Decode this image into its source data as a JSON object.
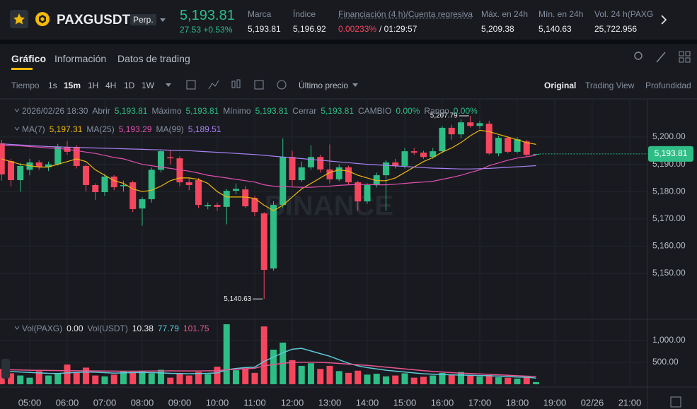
{
  "header": {
    "symbol": "PAXGUSDT",
    "contract": "Perp.",
    "price": "5,193.81",
    "change": "27.53 +0.53%",
    "stats": [
      {
        "label": "Marca",
        "value": "5,193.81"
      },
      {
        "label": "Índice",
        "value": "5,196.92"
      },
      {
        "label": "Financiación (4 h)/Cuenta regresiva",
        "value": "0.00233%",
        "countdown": "/ 01:29:57"
      },
      {
        "label": "Máx. en 24h",
        "value": "5,209.38"
      },
      {
        "label": "Mín. en 24h",
        "value": "5,140.63"
      },
      {
        "label": "Vol. 24 h(PAXG",
        "value": "25,722.956"
      }
    ]
  },
  "tabs": [
    "Gráfico",
    "Información",
    "Datos de trading"
  ],
  "toolbar": {
    "time_label": "Tiempo",
    "intervals": [
      "1s",
      "15m",
      "1H",
      "4H",
      "1D",
      "1W"
    ],
    "price_type": "Último precio",
    "views": [
      "Original",
      "Trading View",
      "Profundidad"
    ]
  },
  "legend": {
    "ohlc": [
      {
        "text": "2026/02/26 18:30",
        "kind": "label"
      },
      {
        "text": "Abrir",
        "kind": "label"
      },
      {
        "text": "5,193.81",
        "kind": "value"
      },
      {
        "text": "Máximo",
        "kind": "label"
      },
      {
        "text": "5,193.81",
        "kind": "value"
      },
      {
        "text": "Mínimo",
        "kind": "label"
      },
      {
        "text": "5,193.81",
        "kind": "value"
      },
      {
        "text": "Cerrar",
        "kind": "label"
      },
      {
        "text": "5,193.81",
        "kind": "value"
      },
      {
        "text": "CAMBIO",
        "kind": "label"
      },
      {
        "text": "0.00%",
        "kind": "value"
      },
      {
        "text": "Rango",
        "kind": "label"
      },
      {
        "text": "0.00%",
        "kind": "value"
      }
    ],
    "ma_values": [
      "5,197.31",
      "5,193.29",
      "5,189.51"
    ],
    "vol": {
      "label1": "Vol(PAXG)",
      "value1": "0.00",
      "label2": "Vol(USDT)",
      "value2": "10.38",
      "ma_values": [
        "77.79",
        "101.75"
      ]
    }
  },
  "chart_data": [
    {
      "type": "candlestick",
      "watermark": "BINANCE",
      "grid": true,
      "colors": {
        "up": "#2ebd85",
        "down": "#f6465d"
      },
      "x": [
        4.25,
        4.5,
        4.75,
        5,
        5.25,
        5.5,
        5.75,
        6,
        6.25,
        6.5,
        6.75,
        7,
        7.25,
        7.5,
        7.75,
        8,
        8.25,
        8.5,
        8.75,
        9,
        9.25,
        9.5,
        9.75,
        10,
        10.25,
        10.5,
        10.75,
        11,
        11.25,
        11.5,
        11.75,
        12,
        12.25,
        12.5,
        12.75,
        13,
        13.25,
        13.5,
        13.75,
        14,
        14.25,
        14.5,
        14.75,
        15,
        15.25,
        15.5,
        15.75,
        16,
        16.25,
        16.5,
        16.75,
        17,
        17.25,
        17.5,
        17.75,
        18,
        18.25,
        18.5
      ],
      "open": [
        5197.7,
        5191.2,
        5184.2,
        5188,
        5190.7,
        5189,
        5190,
        5196.4,
        5196.4,
        5189.4,
        5182.4,
        5179.8,
        5185.5,
        5182,
        5183.4,
        5173.8,
        5177.2,
        5188,
        5192.6,
        5192.2,
        5183.4,
        5184.2,
        5174.6,
        5175.1,
        5174.4,
        5180.3,
        5180.8,
        5177.7,
        5172,
        5151.8,
        5175.1,
        5192.7,
        5184.2,
        5188.9,
        5192.7,
        5188.1,
        5184.5,
        5188.9,
        5183.4,
        5176.4,
        5182.4,
        5186,
        5190.7,
        5189.4,
        5194.8,
        5194.3,
        5192.7,
        5194.8,
        5203.4,
        5201,
        5205.4,
        5204.1,
        5204.9,
        5194,
        5199.7,
        5194.6,
        5198.4,
        5193.81
      ],
      "high": [
        5199,
        5192,
        5190.5,
        5192,
        5191.5,
        5191,
        5197.5,
        5198.5,
        5197,
        5190,
        5183,
        5186.5,
        5186,
        5184,
        5184,
        5178,
        5188.8,
        5195.5,
        5195,
        5193,
        5185,
        5185,
        5176,
        5176,
        5181,
        5183,
        5182,
        5178.5,
        5172.5,
        5176.5,
        5199.5,
        5195,
        5191,
        5197,
        5193.5,
        5197.3,
        5190,
        5189.5,
        5184,
        5183,
        5187,
        5191.5,
        5192,
        5196,
        5196,
        5195,
        5196,
        5204,
        5204.5,
        5206.5,
        5207.79,
        5206,
        5206,
        5200.5,
        5200,
        5200,
        5199,
        5193.81
      ],
      "low": [
        5184,
        5182,
        5180,
        5186,
        5188,
        5187.5,
        5189.5,
        5193.5,
        5188.5,
        5180,
        5177,
        5178.5,
        5180.5,
        5180,
        5172.5,
        5167.5,
        5176,
        5187,
        5190,
        5182,
        5180.5,
        5174,
        5173.5,
        5173,
        5168,
        5179,
        5174,
        5171,
        5140.63,
        5151,
        5174,
        5182,
        5183.5,
        5188,
        5187,
        5183,
        5183.8,
        5182.5,
        5173,
        5175.5,
        5181.5,
        5173,
        5188.5,
        5188.5,
        5193.5,
        5192,
        5192,
        5194,
        5199,
        5199.5,
        5203.5,
        5203,
        5193.5,
        5193,
        5194,
        5194,
        5193,
        5193.81
      ],
      "close": [
        5186.3,
        5184.2,
        5189.4,
        5190.7,
        5189,
        5190,
        5196.4,
        5194.6,
        5189.4,
        5182.4,
        5179.8,
        5185.5,
        5181.6,
        5182.4,
        5173.6,
        5177.2,
        5188,
        5194.8,
        5192.2,
        5183.4,
        5182.4,
        5175.1,
        5175.1,
        5174.4,
        5180.3,
        5181,
        5174.6,
        5172.5,
        5151.3,
        5175.1,
        5192.7,
        5184.2,
        5188.9,
        5192.7,
        5188.1,
        5184.5,
        5188.9,
        5183.4,
        5176.4,
        5182.4,
        5186,
        5190.7,
        5189.4,
        5194.8,
        5194.3,
        5192.7,
        5194.8,
        5203.4,
        5201,
        5205.4,
        5204.1,
        5205.1,
        5194,
        5199.7,
        5194.6,
        5199.2,
        5193.5,
        5193.81
      ],
      "lines": [
        {
          "name": "MA(7)",
          "color": "#f0b90b",
          "values": [
            5192,
            5191,
            5190,
            5189.5,
            5189,
            5189,
            5190,
            5191,
            5192,
            5191,
            5188,
            5186,
            5184,
            5183,
            5181,
            5180,
            5180.5,
            5182,
            5184,
            5185,
            5185,
            5184.5,
            5183,
            5180,
            5178,
            5178,
            5178,
            5177.5,
            5175,
            5173,
            5175,
            5178,
            5181,
            5183,
            5185,
            5187,
            5188,
            5187.5,
            5186,
            5185,
            5184,
            5184,
            5185,
            5187,
            5189,
            5191,
            5192.5,
            5194.5,
            5196,
            5198,
            5200.5,
            5202.5,
            5202,
            5201,
            5200,
            5199,
            5198,
            5197.31
          ]
        },
        {
          "name": "MA(25)",
          "color": "#e24fb0",
          "values": [
            5197,
            5197,
            5196.8,
            5196.5,
            5196.3,
            5196,
            5195.8,
            5195.5,
            5195,
            5194.5,
            5194,
            5193.3,
            5192.5,
            5192,
            5191,
            5190,
            5189.5,
            5189,
            5188.5,
            5188,
            5187.5,
            5186.8,
            5186,
            5185.5,
            5185,
            5184.5,
            5184,
            5183.5,
            5182.5,
            5182,
            5181.8,
            5181.7,
            5181.6,
            5181.6,
            5181.8,
            5182,
            5182.3,
            5182.5,
            5182.6,
            5182.6,
            5182.5,
            5182.5,
            5182.7,
            5183,
            5183.3,
            5183.5,
            5183.8,
            5184.5,
            5185.2,
            5186,
            5187,
            5188,
            5189.5,
            5190.5,
            5191.5,
            5192.3,
            5192.8,
            5193.29
          ]
        },
        {
          "name": "MA(99)",
          "color": "#a880f0",
          "values": [
            5197.5,
            5197.3,
            5197.1,
            5196.9,
            5196.7,
            5196.5,
            5196.4,
            5196.3,
            5196.2,
            5196.1,
            5196,
            5195.9,
            5195.8,
            5195.7,
            5195.6,
            5195.5,
            5195.4,
            5195.3,
            5195.2,
            5195.1,
            5195,
            5194.8,
            5194.6,
            5194.4,
            5194.2,
            5194,
            5193.8,
            5193.6,
            5193.3,
            5193,
            5192.7,
            5192.4,
            5192.1,
            5191.8,
            5191.5,
            5191.2,
            5190.9,
            5190.6,
            5190.3,
            5190,
            5189.8,
            5189.6,
            5189.4,
            5189.2,
            5189,
            5188.8,
            5188.6,
            5188.5,
            5188.4,
            5188.3,
            5188.3,
            5188.4,
            5188.5,
            5188.7,
            5188.9,
            5189.1,
            5189.3,
            5189.51
          ]
        }
      ],
      "xlim": [
        4.208,
        21.472
      ],
      "ylim": [
        5134.2,
        5214.0
      ],
      "yticks": [
        {
          "value": 5200,
          "label": "5,200.00"
        },
        {
          "value": 5190,
          "label": "5,190.00"
        },
        {
          "value": 5180,
          "label": "5,180.00"
        },
        {
          "value": 5170,
          "label": "5,170.00"
        },
        {
          "value": 5160,
          "label": "5,160.00"
        },
        {
          "value": 5150,
          "label": "5,150.00"
        }
      ],
      "annotations": [
        {
          "x": 16.75,
          "value": 5207.79,
          "label": "5,207.79"
        },
        {
          "x": 11.25,
          "value": 5140.63,
          "label": "5,140.63"
        }
      ],
      "last_price": {
        "value": 5193.81,
        "label": "5,193.81"
      }
    },
    {
      "type": "bar",
      "values": [
        350,
        250,
        200,
        150,
        300,
        200,
        250,
        450,
        280,
        380,
        200,
        180,
        220,
        300,
        280,
        300,
        250,
        330,
        150,
        250,
        200,
        280,
        230,
        400,
        1370,
        320,
        350,
        260,
        1320,
        790,
        950,
        550,
        420,
        480,
        350,
        420,
        300,
        260,
        310,
        220,
        240,
        180,
        200,
        250,
        150,
        170,
        200,
        260,
        220,
        280,
        210,
        180,
        210,
        160,
        150,
        130,
        170,
        50
      ],
      "lines": [
        {
          "color": "#5ec8d8",
          "values": [
            300,
            290,
            280,
            270,
            260,
            250,
            245,
            260,
            270,
            280,
            275,
            265,
            255,
            260,
            265,
            270,
            265,
            260,
            250,
            245,
            240,
            245,
            250,
            260,
            330,
            360,
            380,
            390,
            520,
            620,
            720,
            800,
            820,
            760,
            700,
            640,
            560,
            480,
            420,
            380,
            350,
            320,
            300,
            280,
            260,
            240,
            230,
            220,
            215,
            210,
            205,
            200,
            195,
            185,
            175,
            165,
            160,
            140
          ]
        },
        {
          "color": "#e8568e",
          "values": [
            330,
            330,
            325,
            320,
            318,
            315,
            312,
            310,
            308,
            306,
            304,
            302,
            300,
            298,
            298,
            300,
            302,
            305,
            306,
            305,
            304,
            305,
            306,
            310,
            330,
            340,
            355,
            365,
            420,
            450,
            480,
            500,
            505,
            505,
            500,
            490,
            475,
            460,
            445,
            430,
            410,
            390,
            370,
            350,
            330,
            310,
            295,
            280,
            265,
            255,
            245,
            235,
            225,
            215,
            205,
            195,
            185,
            175
          ]
        }
      ],
      "ylim": [
        -65,
        1435
      ],
      "yticks": [
        {
          "value": 1000,
          "label": "1,000.00"
        },
        {
          "value": 500,
          "label": "500.00"
        }
      ],
      "xticks": [
        {
          "value": 5,
          "label": "05:00"
        },
        {
          "value": 6,
          "label": "06:00"
        },
        {
          "value": 7,
          "label": "07:00"
        },
        {
          "value": 8,
          "label": "08:00"
        },
        {
          "value": 9,
          "label": "09:00"
        },
        {
          "value": 10,
          "label": "10:00"
        },
        {
          "value": 11,
          "label": "11:00"
        },
        {
          "value": 12,
          "label": "12:00"
        },
        {
          "value": 13,
          "label": "13:00"
        },
        {
          "value": 14,
          "label": "14:00"
        },
        {
          "value": 15,
          "label": "15:00"
        },
        {
          "value": 16,
          "label": "16:00"
        },
        {
          "value": 17,
          "label": "17:00"
        },
        {
          "value": 18,
          "label": "18:00"
        },
        {
          "value": 19,
          "label": "19:00"
        },
        {
          "value": 20,
          "label": "02/26"
        },
        {
          "value": 21,
          "label": "21:00"
        }
      ]
    }
  ]
}
